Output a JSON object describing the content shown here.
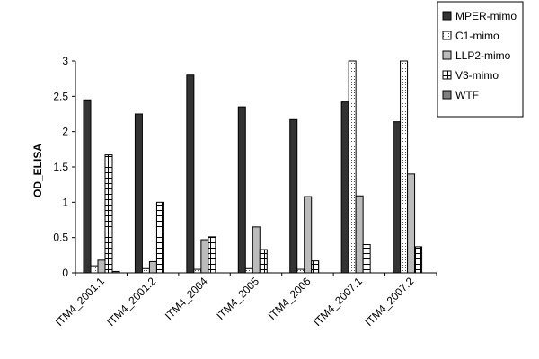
{
  "chart_data": {
    "type": "bar",
    "title": "",
    "xlabel": "",
    "ylabel": "OD_ELISA",
    "ylim": [
      0,
      3
    ],
    "yticks": [
      "0",
      "0.5",
      "1",
      "1.5",
      "2",
      "2.5",
      "3"
    ],
    "grid": false,
    "legend_position": "top-right",
    "categories": [
      "ITM4_2001.1",
      "ITM4_2001.2",
      "ITM4_2004",
      "ITM4_2005",
      "ITM4_2006",
      "ITM4_2007.1",
      "ITM4_2007.2"
    ],
    "series": [
      {
        "name": "MPER-mimo",
        "color": "#333333",
        "pattern": "solid-dark",
        "values": [
          2.45,
          2.25,
          2.8,
          2.35,
          2.17,
          2.42,
          2.14
        ]
      },
      {
        "name": "C1-mimo",
        "color": "#ffffff",
        "pattern": "dotted",
        "values": [
          0.1,
          0.06,
          0.05,
          0.06,
          0.05,
          3.0,
          3.0
        ]
      },
      {
        "name": "LLP2-mimo",
        "color": "#bbbbbb",
        "pattern": "solid-light",
        "values": [
          0.18,
          0.16,
          0.47,
          0.65,
          1.08,
          1.09,
          1.4
        ]
      },
      {
        "name": "V3-mimo",
        "color": "#ffffff",
        "pattern": "grid",
        "values": [
          1.67,
          1.0,
          0.51,
          0.33,
          0.17,
          0.4,
          0.37
        ]
      },
      {
        "name": "WTF",
        "color": "#808080",
        "pattern": "solid-mid",
        "values": [
          0.02,
          0.0,
          0.0,
          0.0,
          0.0,
          0.0,
          0.0
        ]
      }
    ]
  }
}
